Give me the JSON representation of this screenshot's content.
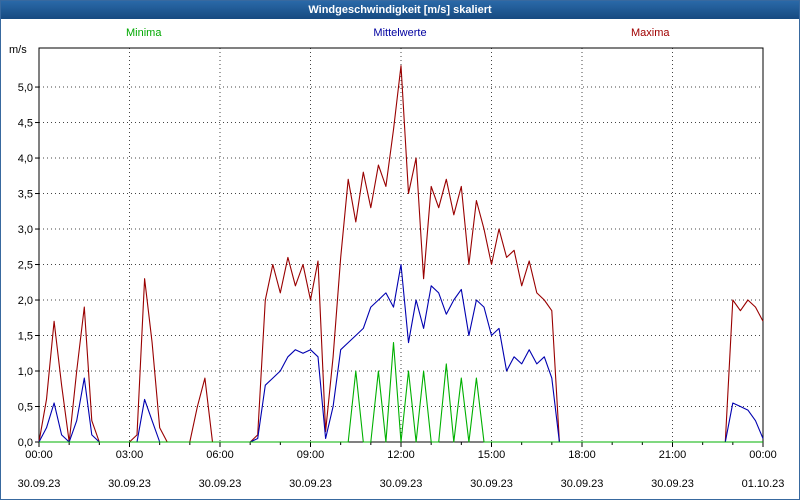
{
  "title_bar": {
    "title": "Windgeschwindigkeit [m/s] skaliert"
  },
  "legend": [
    {
      "label": "Minima",
      "color": "#00a800"
    },
    {
      "label": "Mittelwerte",
      "color": "#0000a0"
    },
    {
      "label": "Maxima",
      "color": "#a00000"
    }
  ],
  "chart_data": {
    "type": "line",
    "title": "Windgeschwindigkeit [m/s] skaliert",
    "xlabel": "",
    "ylabel": "m/s",
    "ylim": [
      0,
      5.55
    ],
    "grid": true,
    "legend_position": "top",
    "x_range_hours": [
      0,
      24
    ],
    "x_start_hour": 0,
    "x_step_hours": 0.25,
    "y_ticks": [
      {
        "v": 5.0,
        "label": "5,0"
      },
      {
        "v": 4.5,
        "label": "4,5"
      },
      {
        "v": 4.0,
        "label": "4,0"
      },
      {
        "v": 3.5,
        "label": "3,5"
      },
      {
        "v": 3.0,
        "label": "3,0"
      },
      {
        "v": 2.5,
        "label": "2,5"
      },
      {
        "v": 2.0,
        "label": "2,0"
      },
      {
        "v": 1.5,
        "label": "1,5"
      },
      {
        "v": 1.0,
        "label": "1,0"
      },
      {
        "v": 0.5,
        "label": "0,5"
      },
      {
        "v": 0.0,
        "label": "0,0"
      }
    ],
    "x_ticks": [
      {
        "hour": 0,
        "time": "00:00",
        "date": "30.09.23"
      },
      {
        "hour": 3,
        "time": "03:00",
        "date": "30.09.23"
      },
      {
        "hour": 6,
        "time": "06:00",
        "date": "30.09.23"
      },
      {
        "hour": 9,
        "time": "09:00",
        "date": "30.09.23"
      },
      {
        "hour": 12,
        "time": "12:00",
        "date": "30.09.23"
      },
      {
        "hour": 15,
        "time": "15:00",
        "date": "30.09.23"
      },
      {
        "hour": 18,
        "time": "18:00",
        "date": "30.09.23"
      },
      {
        "hour": 21,
        "time": "21:00",
        "date": "30.09.23"
      },
      {
        "hour": 24,
        "time": "00:00",
        "date": "01.10.23"
      }
    ],
    "series": [
      {
        "name": "Maxima",
        "color": "#990000",
        "values": [
          0,
          0.6,
          1.7,
          0.8,
          0,
          1.0,
          1.9,
          0.3,
          0,
          0,
          0,
          0,
          0,
          0.1,
          2.3,
          1.4,
          0.2,
          0,
          0,
          0,
          0,
          0.5,
          0.9,
          0,
          0,
          0,
          0,
          0,
          0,
          0.1,
          2.0,
          2.5,
          2.1,
          2.6,
          2.2,
          2.5,
          2.0,
          2.55,
          0.15,
          1.2,
          2.6,
          3.7,
          3.1,
          3.8,
          3.3,
          3.9,
          3.6,
          4.4,
          5.3,
          3.5,
          4.0,
          2.3,
          3.6,
          3.3,
          3.7,
          3.2,
          3.6,
          2.5,
          3.4,
          3.0,
          2.5,
          3.0,
          2.6,
          2.7,
          2.2,
          2.55,
          2.1,
          2.0,
          1.85,
          0,
          0,
          0,
          0,
          0,
          0,
          0,
          0,
          0,
          0,
          0,
          0,
          0,
          0,
          0,
          0,
          0,
          0,
          0,
          0,
          0,
          0,
          0,
          2.0,
          1.85,
          2.0,
          1.9,
          1.7
        ]
      },
      {
        "name": "Mittelwerte",
        "color": "#0000b0",
        "values": [
          0,
          0.2,
          0.55,
          0.1,
          0,
          0.3,
          0.9,
          0.1,
          0,
          0,
          0,
          0,
          0,
          0,
          0.6,
          0.3,
          0,
          0,
          0,
          0,
          0,
          0,
          0,
          0,
          0,
          0,
          0,
          0,
          0,
          0.05,
          0.8,
          0.9,
          1.0,
          1.2,
          1.3,
          1.25,
          1.3,
          1.2,
          0.05,
          0.5,
          1.3,
          1.4,
          1.5,
          1.6,
          1.9,
          2.0,
          2.1,
          1.9,
          2.5,
          1.4,
          2.0,
          1.6,
          2.2,
          2.1,
          1.8,
          2.0,
          2.15,
          1.5,
          2.0,
          1.9,
          1.5,
          1.6,
          1.0,
          1.2,
          1.1,
          1.3,
          1.1,
          1.2,
          0.9,
          0,
          0,
          0,
          0,
          0,
          0,
          0,
          0,
          0,
          0,
          0,
          0,
          0,
          0,
          0,
          0,
          0,
          0,
          0,
          0,
          0,
          0,
          0,
          0.55,
          0.5,
          0.45,
          0.3,
          0.05
        ]
      },
      {
        "name": "Minima",
        "color": "#00b000",
        "values": [
          0,
          0,
          0,
          0,
          0,
          0,
          0,
          0,
          0,
          0,
          0,
          0,
          0,
          0,
          0,
          0,
          0,
          0,
          0,
          0,
          0,
          0,
          0,
          0,
          0,
          0,
          0,
          0,
          0,
          0,
          0,
          0,
          0,
          0,
          0,
          0,
          0,
          0,
          0,
          0,
          0,
          0,
          1.0,
          0,
          0,
          1.0,
          0,
          1.4,
          0,
          1.0,
          0,
          1.0,
          0,
          0,
          1.1,
          0,
          0.9,
          0,
          0.9,
          0,
          0,
          0,
          0,
          0,
          0,
          0,
          0,
          0,
          0,
          0,
          0,
          0,
          0,
          0,
          0,
          0,
          0,
          0,
          0,
          0,
          0,
          0,
          0,
          0,
          0,
          0,
          0,
          0,
          0,
          0,
          0,
          0,
          0,
          0,
          0,
          0,
          0
        ]
      }
    ]
  }
}
